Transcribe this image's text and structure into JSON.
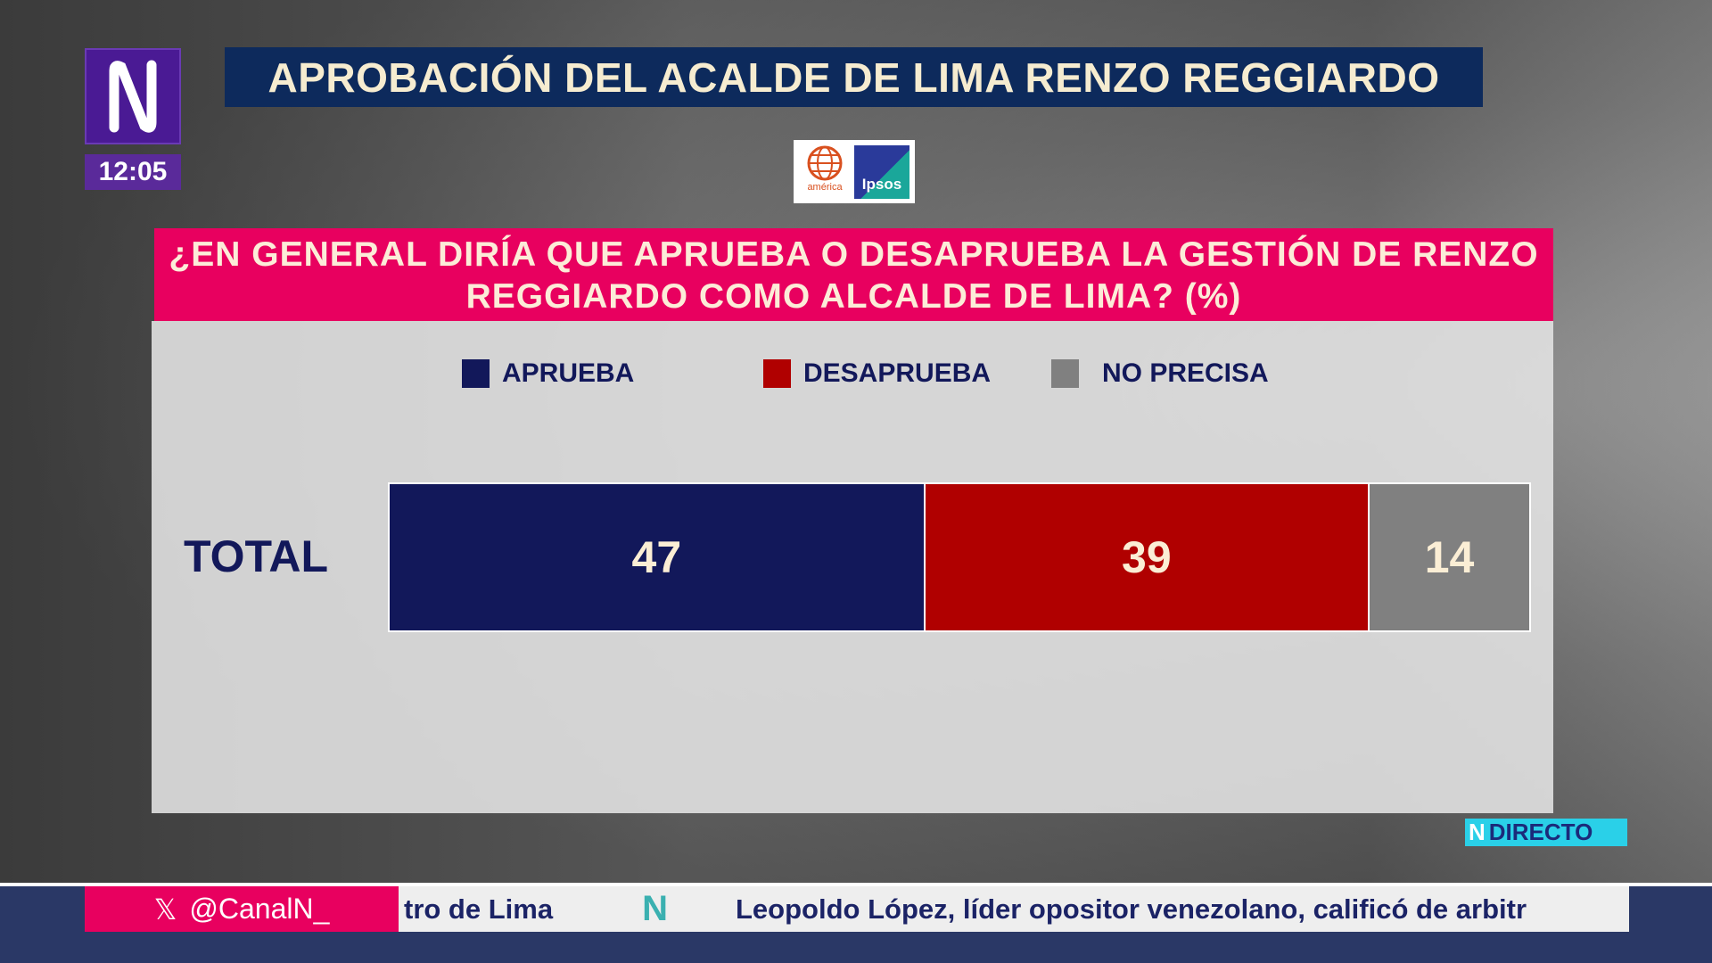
{
  "channel": {
    "logo_text": "N",
    "time": "12:05",
    "live_badge_logo": "N",
    "live_badge": "DIRECTO"
  },
  "title": "APROBACIÓN DEL ACALDE DE LIMA RENZO REGGIARDO",
  "sources": {
    "america": "américa",
    "ipsos": "Ipsos"
  },
  "chart_data": {
    "type": "bar",
    "orientation": "horizontal-stacked",
    "title": "¿EN GENERAL DIRÍA QUE APRUEBA O DESAPRUEBA LA GESTIÓN DE RENZO REGGIARDO COMO ALCALDE DE LIMA? (%)",
    "categories": [
      "TOTAL"
    ],
    "series": [
      {
        "name": "APRUEBA",
        "values": [
          47
        ],
        "color": "#12185a"
      },
      {
        "name": "DESAPRUEBA",
        "values": [
          39
        ],
        "color": "#b00000"
      },
      {
        "name": "NO PRECISA",
        "values": [
          14
        ],
        "color": "#808080"
      }
    ],
    "xlim": [
      0,
      100
    ],
    "legend": "top"
  },
  "ticker": {
    "handle": "@CanalN_",
    "x_icon": "𝕏",
    "prev": "tro de Lima",
    "sep": "N",
    "text": "Leopoldo López, líder opositor venezolano, calificó de arbitr"
  }
}
